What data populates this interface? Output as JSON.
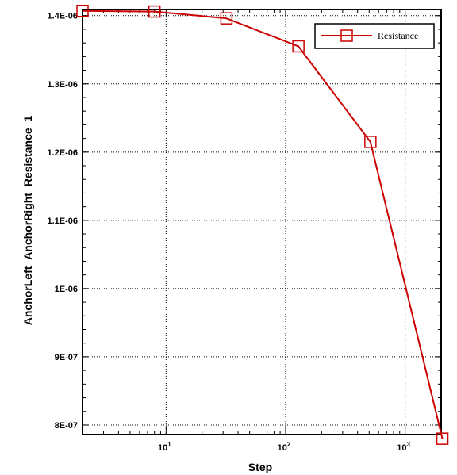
{
  "chart_data": {
    "type": "line",
    "xlabel": "Step",
    "ylabel": "AnchorLeft_AnchorRight_Resistance_1",
    "x_scale": "log",
    "xlim": [
      2,
      2000
    ],
    "ylim": [
      7.86e-07,
      1.409e-06
    ],
    "grid": true,
    "legend_position": "top-right",
    "x_ticks": [
      {
        "value": 10,
        "base": "10",
        "exp": "1"
      },
      {
        "value": 100,
        "base": "10",
        "exp": "2"
      },
      {
        "value": 1000,
        "base": "10",
        "exp": "3"
      }
    ],
    "y_ticks": [
      {
        "value": 8e-07,
        "label": "8E-07"
      },
      {
        "value": 9e-07,
        "label": "9E-07"
      },
      {
        "value": 1e-06,
        "label": "1E-06"
      },
      {
        "value": 1.1e-06,
        "label": "1.1E-06"
      },
      {
        "value": 1.2e-06,
        "label": "1.2E-06"
      },
      {
        "value": 1.3e-06,
        "label": "1.3E-06"
      },
      {
        "value": 1.4e-06,
        "label": "1.4E-06"
      }
    ],
    "series": [
      {
        "name": "Resistance",
        "color": "#cc0000",
        "marker": "square",
        "x": [
          2,
          8,
          32,
          128,
          512,
          2048
        ],
        "y": [
          1.407e-06,
          1.406e-06,
          1.396e-06,
          1.355e-06,
          1.215e-06,
          7.8e-07
        ]
      }
    ]
  }
}
